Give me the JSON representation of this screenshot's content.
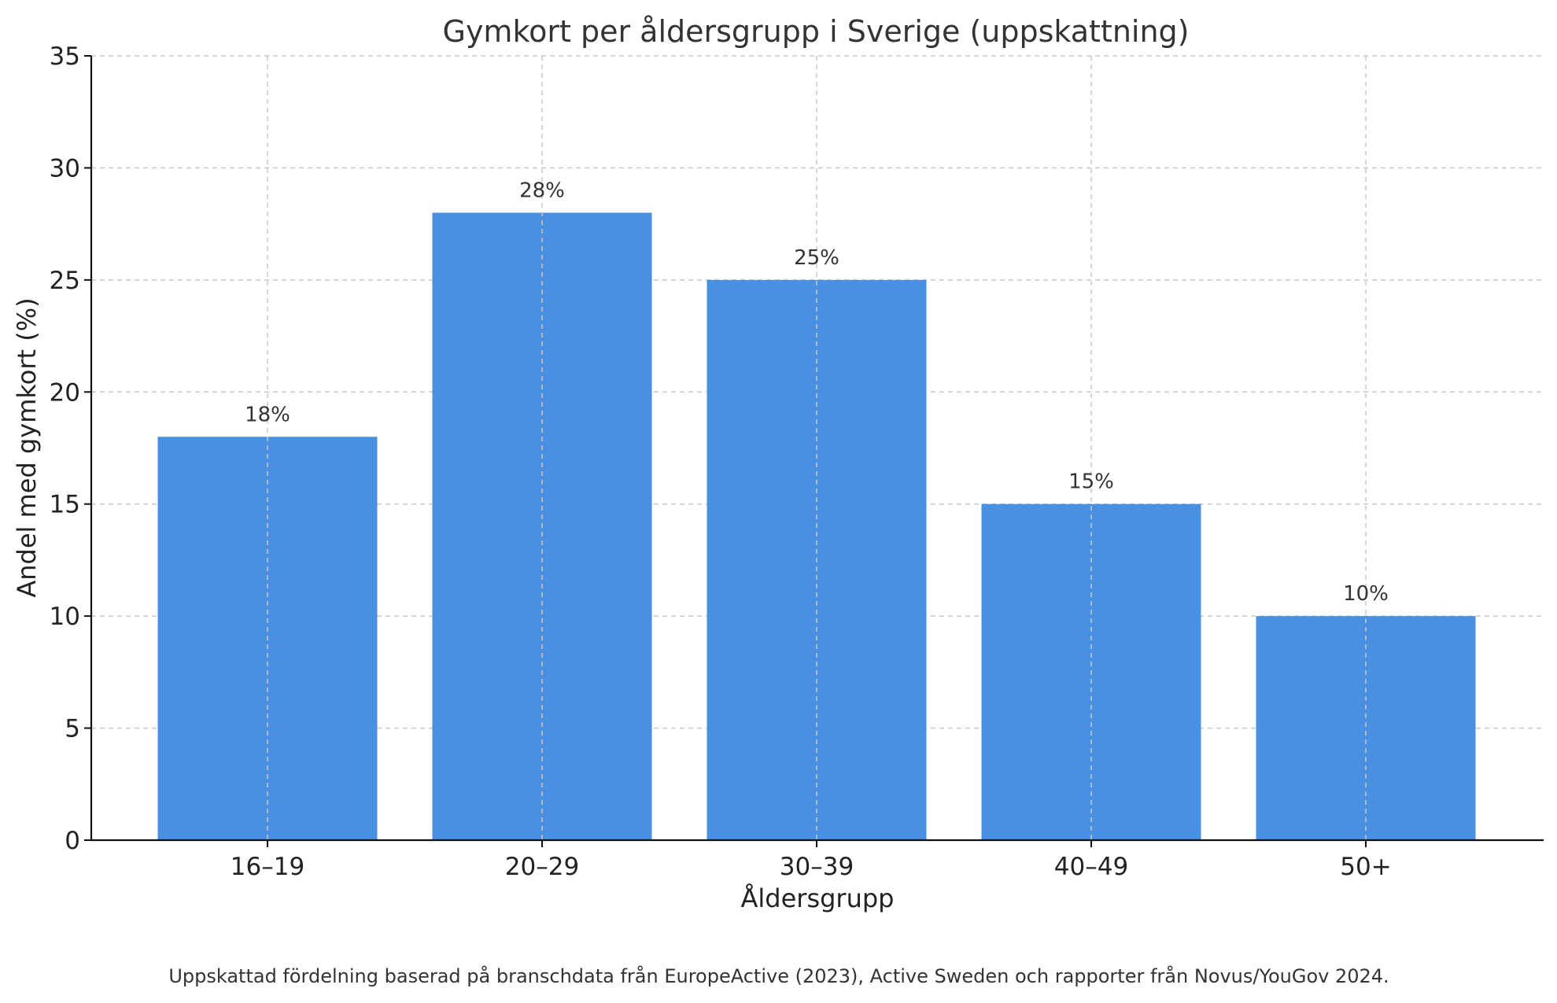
{
  "chart_data": {
    "type": "bar",
    "title": "Gymkort per åldersgrupp i Sverige (uppskattning)",
    "xlabel": "Åldersgrupp",
    "ylabel": "Andel med gymkort (%)",
    "categories": [
      "16–19",
      "20–29",
      "30–39",
      "40–49",
      "50+"
    ],
    "values": [
      18,
      28,
      25,
      15,
      10
    ],
    "value_labels": [
      "18%",
      "28%",
      "25%",
      "15%",
      "10%"
    ],
    "ylim": [
      0,
      35
    ],
    "yticks": [
      0,
      5,
      10,
      15,
      20,
      25,
      30,
      35
    ],
    "grid": true,
    "bar_color": "#4a90e2"
  },
  "caption": "Uppskattad fördelning baserad på branschdata från EuropeActive (2023), Active Sweden och rapporter från Novus/YouGov 2024."
}
